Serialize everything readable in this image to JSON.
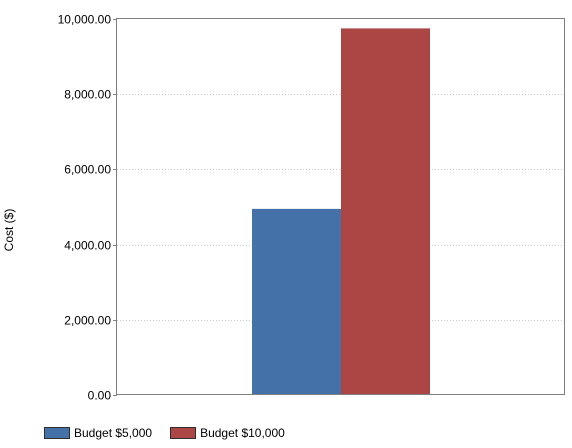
{
  "chart_data": {
    "type": "bar",
    "ylabel": "Cost ($)",
    "ylim": [
      0,
      10000
    ],
    "yticks": [
      "0.00",
      "2,000.00",
      "4,000.00",
      "6,000.00",
      "8,000.00",
      "10,000.00"
    ],
    "ytick_values": [
      0,
      2000,
      4000,
      6000,
      8000,
      10000
    ],
    "grid": true,
    "legend_position": "bottom-left",
    "series": [
      {
        "name": "Budget $5,000",
        "values": [
          4950
        ],
        "color": "#4472a8"
      },
      {
        "name": "Budget $10,000",
        "values": [
          9750
        ],
        "color": "#ab4645"
      }
    ]
  }
}
